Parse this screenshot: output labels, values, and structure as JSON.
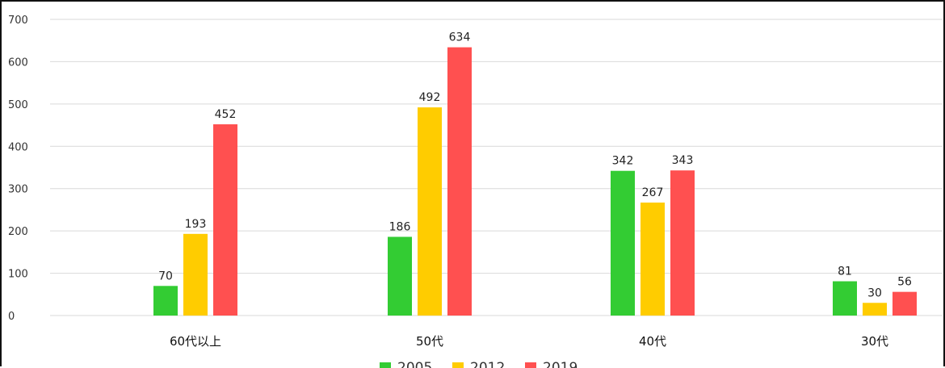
{
  "chart_data": {
    "type": "bar",
    "categories": [
      "60代以上",
      "50代",
      "40代",
      "30代"
    ],
    "series": [
      {
        "name": "2005",
        "color": "#33cc33",
        "values": [
          70,
          186,
          342,
          81
        ]
      },
      {
        "name": "2012",
        "color": "#ffcc00",
        "values": [
          193,
          492,
          267,
          30
        ]
      },
      {
        "name": "2019",
        "color": "#ff5050",
        "values": [
          452,
          634,
          343,
          56
        ]
      }
    ],
    "ylim": [
      0,
      700
    ],
    "yticks": [
      0,
      100,
      200,
      300,
      400,
      500,
      600,
      700
    ],
    "grid": true,
    "legend": "bottom",
    "data_labels": true
  }
}
